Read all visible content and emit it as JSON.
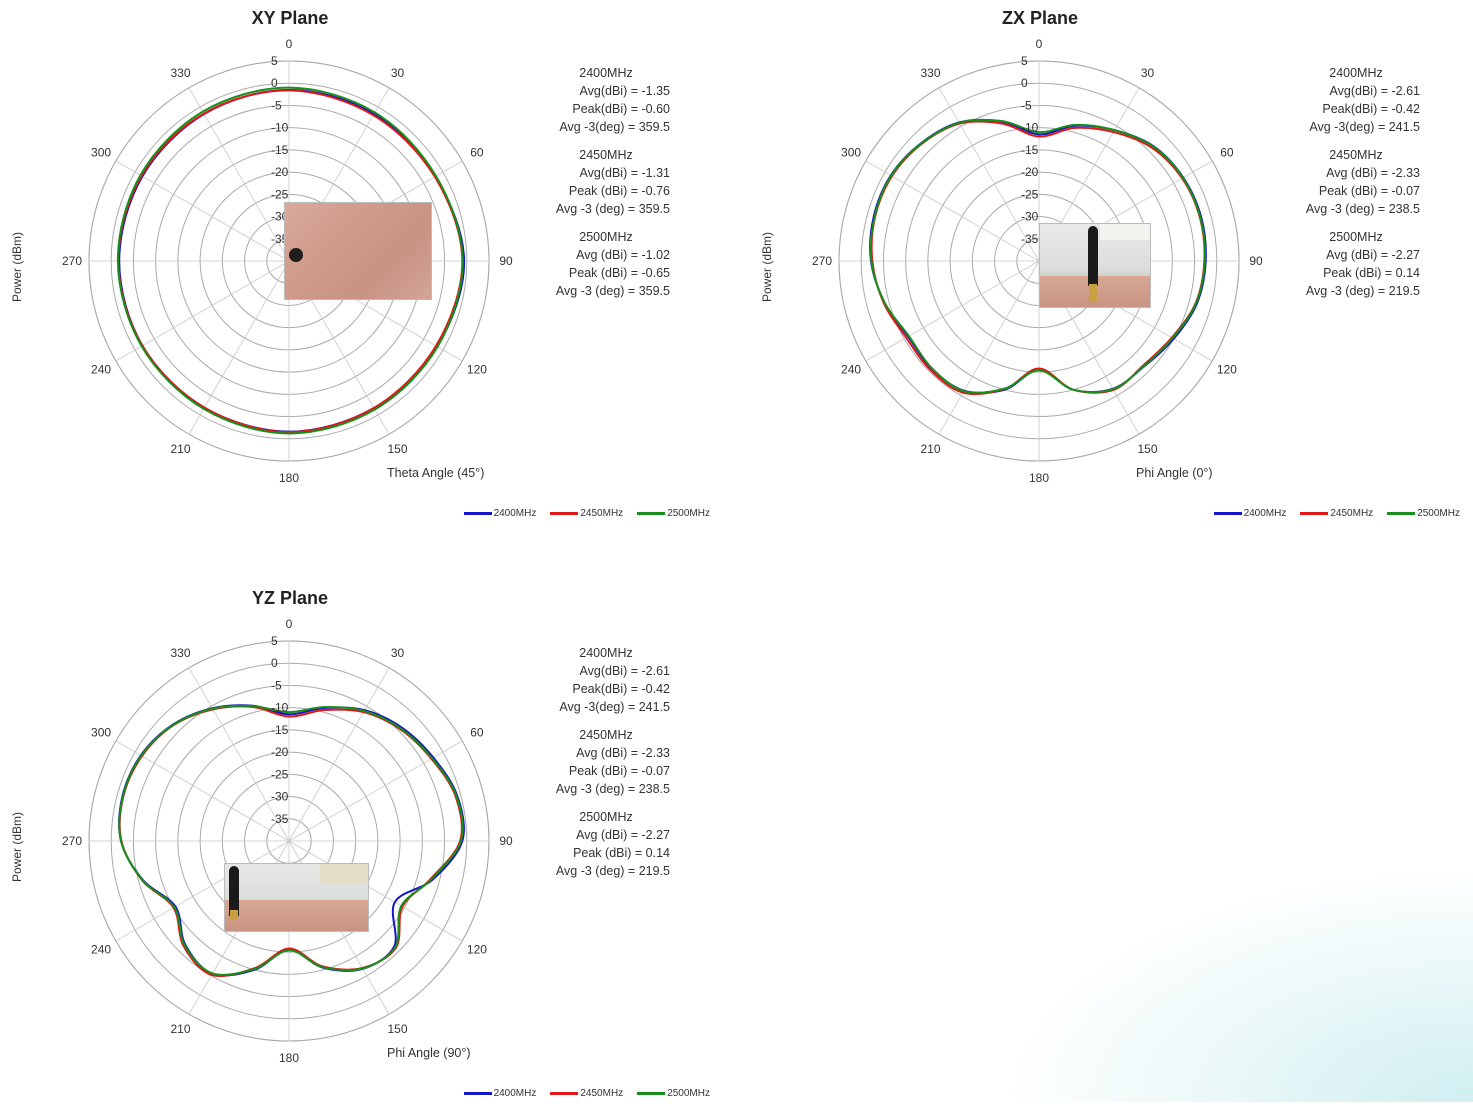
{
  "colors": {
    "2400MHz": "#1515c8",
    "2450MHz": "#e01818",
    "2500MHz": "#16901a",
    "grid": "#aaaaaa"
  },
  "legend": [
    "2400MHz",
    "2450MHz",
    "2500MHz"
  ],
  "panels": [
    {
      "title": "XY Plane",
      "ylabel": "Power (dBm)",
      "angle_axis_label": "Theta Angle (45°)",
      "stats": [
        {
          "freq": "2400MHz",
          "lines": [
            "Avg(dBi) = -1.35",
            "Peak(dBi) = -0.60",
            "Avg -3(deg) = 359.5"
          ]
        },
        {
          "freq": "2450MHz",
          "lines": [
            "Avg(dBi) =  -1.31",
            "Peak (dBi) =  -0.76",
            "Avg -3 (deg) =  359.5"
          ]
        },
        {
          "freq": "2500MHz",
          "lines": [
            "Avg (dBi) =  -1.02",
            "Peak (dBi) =  -0.65",
            "Avg -3 (deg) =  359.5"
          ]
        }
      ]
    },
    {
      "title": "ZX Plane",
      "ylabel": "Power (dBm)",
      "angle_axis_label": "Phi Angle (0°)",
      "stats": [
        {
          "freq": "2400MHz",
          "lines": [
            "Avg(dBi) = -2.61",
            "Peak(dBi) = -0.42",
            "Avg -3(deg) = 241.5"
          ]
        },
        {
          "freq": "2450MHz",
          "lines": [
            "Avg (dBi) =  -2.33",
            "Peak (dBi) =  -0.07",
            "Avg -3 (deg) =  238.5"
          ]
        },
        {
          "freq": "2500MHz",
          "lines": [
            "Avg (dBi) =  -2.27",
            "Peak (dBi) = 0.14",
            "Avg -3 (deg) = 219.5"
          ]
        }
      ]
    },
    {
      "title": "YZ Plane",
      "ylabel": "Power (dBm)",
      "angle_axis_label": "Phi Angle (90°)",
      "stats": [
        {
          "freq": "2400MHz",
          "lines": [
            "Avg(dBi) = -2.61",
            "Peak(dBi) = -0.42",
            "Avg -3(deg) = 241.5"
          ]
        },
        {
          "freq": "2450MHz",
          "lines": [
            "Avg (dBi) =  -2.33",
            "Peak (dBi) =  -0.07",
            "Avg -3 (deg) =  238.5"
          ]
        },
        {
          "freq": "2500MHz",
          "lines": [
            "Avg (dBi) =  -2.27",
            "Peak (dBi) = 0.14",
            "Avg -3 (deg) = 219.5"
          ]
        }
      ]
    }
  ],
  "chart_data": [
    {
      "type": "polar-line",
      "title": "XY Plane",
      "r_range": [
        -40,
        5
      ],
      "r_ticks": [
        5,
        0,
        -5,
        -10,
        -15,
        -20,
        -25,
        -30,
        -35
      ],
      "angle_ticks": [
        0,
        30,
        60,
        90,
        120,
        150,
        180,
        210,
        240,
        270,
        300,
        330
      ],
      "grid": true,
      "legend_position": "bottom-right",
      "theta": [
        0,
        30,
        60,
        90,
        120,
        150,
        180,
        210,
        240,
        270,
        300,
        330
      ],
      "series": [
        {
          "name": "2400MHz",
          "r": [
            -1.5,
            -1.8,
            -2.0,
            -0.6,
            -1.5,
            -1.8,
            -1.6,
            -1.9,
            -1.9,
            -1.8,
            -1.9,
            -1.8
          ]
        },
        {
          "name": "2450MHz",
          "r": [
            -1.6,
            -2.1,
            -2.1,
            -1.0,
            -1.8,
            -1.8,
            -1.5,
            -1.9,
            -1.9,
            -1.6,
            -1.7,
            -1.7
          ]
        },
        {
          "name": "2500MHz",
          "r": [
            -1.0,
            -1.4,
            -1.8,
            -0.9,
            -1.4,
            -1.4,
            -1.2,
            -1.6,
            -1.7,
            -1.5,
            -1.4,
            -1.2
          ]
        }
      ]
    },
    {
      "type": "polar-line",
      "title": "ZX Plane",
      "r_range": [
        -40,
        5
      ],
      "r_ticks": [
        5,
        0,
        -5,
        -10,
        -15,
        -20,
        -25,
        -30,
        -35
      ],
      "angle_ticks": [
        0,
        30,
        60,
        90,
        120,
        150,
        180,
        210,
        240,
        270,
        300,
        330
      ],
      "grid": true,
      "legend_position": "bottom-right",
      "theta": [
        0,
        15,
        30,
        45,
        60,
        75,
        90,
        105,
        120,
        135,
        150,
        165,
        180,
        195,
        210,
        225,
        240,
        255,
        270,
        285,
        300,
        315,
        330,
        345
      ],
      "series": [
        {
          "name": "2400MHz",
          "r": [
            -11.5,
            -8.5,
            -6.0,
            -3.5,
            -2.5,
            -2.2,
            -2.5,
            -3.2,
            -5.0,
            -6.5,
            -6.8,
            -10.0,
            -15.5,
            -10.0,
            -6.3,
            -5.8,
            -6.0,
            -4.0,
            -2.2,
            -1.5,
            -1.5,
            -2.5,
            -4.0,
            -7.5
          ]
        },
        {
          "name": "2450MHz",
          "r": [
            -12.0,
            -9.0,
            -6.5,
            -4.0,
            -2.8,
            -2.5,
            -2.8,
            -3.5,
            -5.5,
            -6.8,
            -6.5,
            -10.0,
            -15.8,
            -10.2,
            -5.8,
            -5.4,
            -5.5,
            -3.8,
            -2.5,
            -1.8,
            -1.8,
            -2.7,
            -4.3,
            -8.0
          ]
        },
        {
          "name": "2500MHz",
          "r": [
            -11.0,
            -8.3,
            -6.0,
            -3.6,
            -2.6,
            -2.4,
            -2.7,
            -3.4,
            -5.3,
            -6.6,
            -6.7,
            -10.0,
            -15.4,
            -10.3,
            -6.2,
            -5.9,
            -6.2,
            -4.0,
            -2.3,
            -1.7,
            -1.6,
            -2.6,
            -4.1,
            -7.4
          ]
        }
      ]
    },
    {
      "type": "polar-line",
      "title": "YZ Plane",
      "r_range": [
        -40,
        5
      ],
      "r_ticks": [
        5,
        0,
        -5,
        -10,
        -15,
        -20,
        -25,
        -30,
        -35
      ],
      "angle_ticks": [
        0,
        30,
        60,
        90,
        120,
        150,
        180,
        210,
        240,
        270,
        300,
        330
      ],
      "grid": true,
      "legend_position": "bottom-right",
      "theta": [
        0,
        15,
        30,
        45,
        60,
        75,
        90,
        105,
        120,
        135,
        150,
        165,
        180,
        195,
        210,
        225,
        240,
        255,
        270,
        285,
        300,
        315,
        330,
        345
      ],
      "series": [
        {
          "name": "2400MHz",
          "r": [
            -11.5,
            -9.0,
            -6.0,
            -4.0,
            -2.5,
            -0.8,
            -1.0,
            -6.5,
            -12.5,
            -6.5,
            -6.8,
            -10.5,
            -15.5,
            -10.0,
            -5.5,
            -7.0,
            -10.5,
            -6.0,
            -2.2,
            -1.2,
            -1.5,
            -3.0,
            -5.5,
            -8.5
          ]
        },
        {
          "name": "2450MHz",
          "r": [
            -12.0,
            -9.5,
            -6.5,
            -4.5,
            -3.0,
            -1.2,
            -1.5,
            -7.0,
            -10.5,
            -6.0,
            -7.0,
            -10.8,
            -15.8,
            -10.4,
            -5.2,
            -6.5,
            -10.0,
            -5.8,
            -2.3,
            -1.4,
            -1.8,
            -3.2,
            -5.8,
            -8.8
          ]
        },
        {
          "name": "2500MHz",
          "r": [
            -11.0,
            -8.8,
            -6.2,
            -4.3,
            -2.8,
            -1.0,
            -1.3,
            -6.8,
            -10.8,
            -6.2,
            -6.9,
            -10.6,
            -15.4,
            -10.2,
            -5.6,
            -6.8,
            -10.2,
            -5.9,
            -2.2,
            -1.3,
            -1.6,
            -3.1,
            -5.6,
            -8.6
          ]
        }
      ]
    }
  ]
}
